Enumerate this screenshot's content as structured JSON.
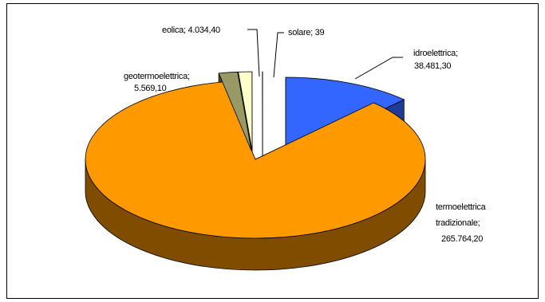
{
  "chart_data": {
    "type": "pie",
    "title": "",
    "style": "3d-exploded",
    "slices": [
      {
        "name": "idroelettrica",
        "value": 38481.3,
        "label": "idroelettrica;",
        "value_label": "38.481,30",
        "color": "#3366FF",
        "side_color": "#1F3A99"
      },
      {
        "name": "termoelettrica tradizionale",
        "value": 265764.2,
        "label": "termoelettrica",
        "label2": "tradizionale;",
        "value_label": "265.764,20",
        "color": "#FF9900",
        "side_color": "#7F4C00"
      },
      {
        "name": "geotermoelettrica",
        "value": 5569.1,
        "label": "geotermoelettrica;",
        "value_label": "5.569,10",
        "color": "#999966",
        "side_color": "#4C4C33"
      },
      {
        "name": "eolica",
        "value": 4034.4,
        "label": "eolica; 4.034,40",
        "color": "#FFFFCC",
        "side_color": "#7F7F66"
      },
      {
        "name": "solare",
        "value": 39,
        "label": "solare; 39",
        "color": "#CCFFFF",
        "side_color": "#667F7F"
      }
    ],
    "legend": "none",
    "data_labels": "name-and-value"
  }
}
